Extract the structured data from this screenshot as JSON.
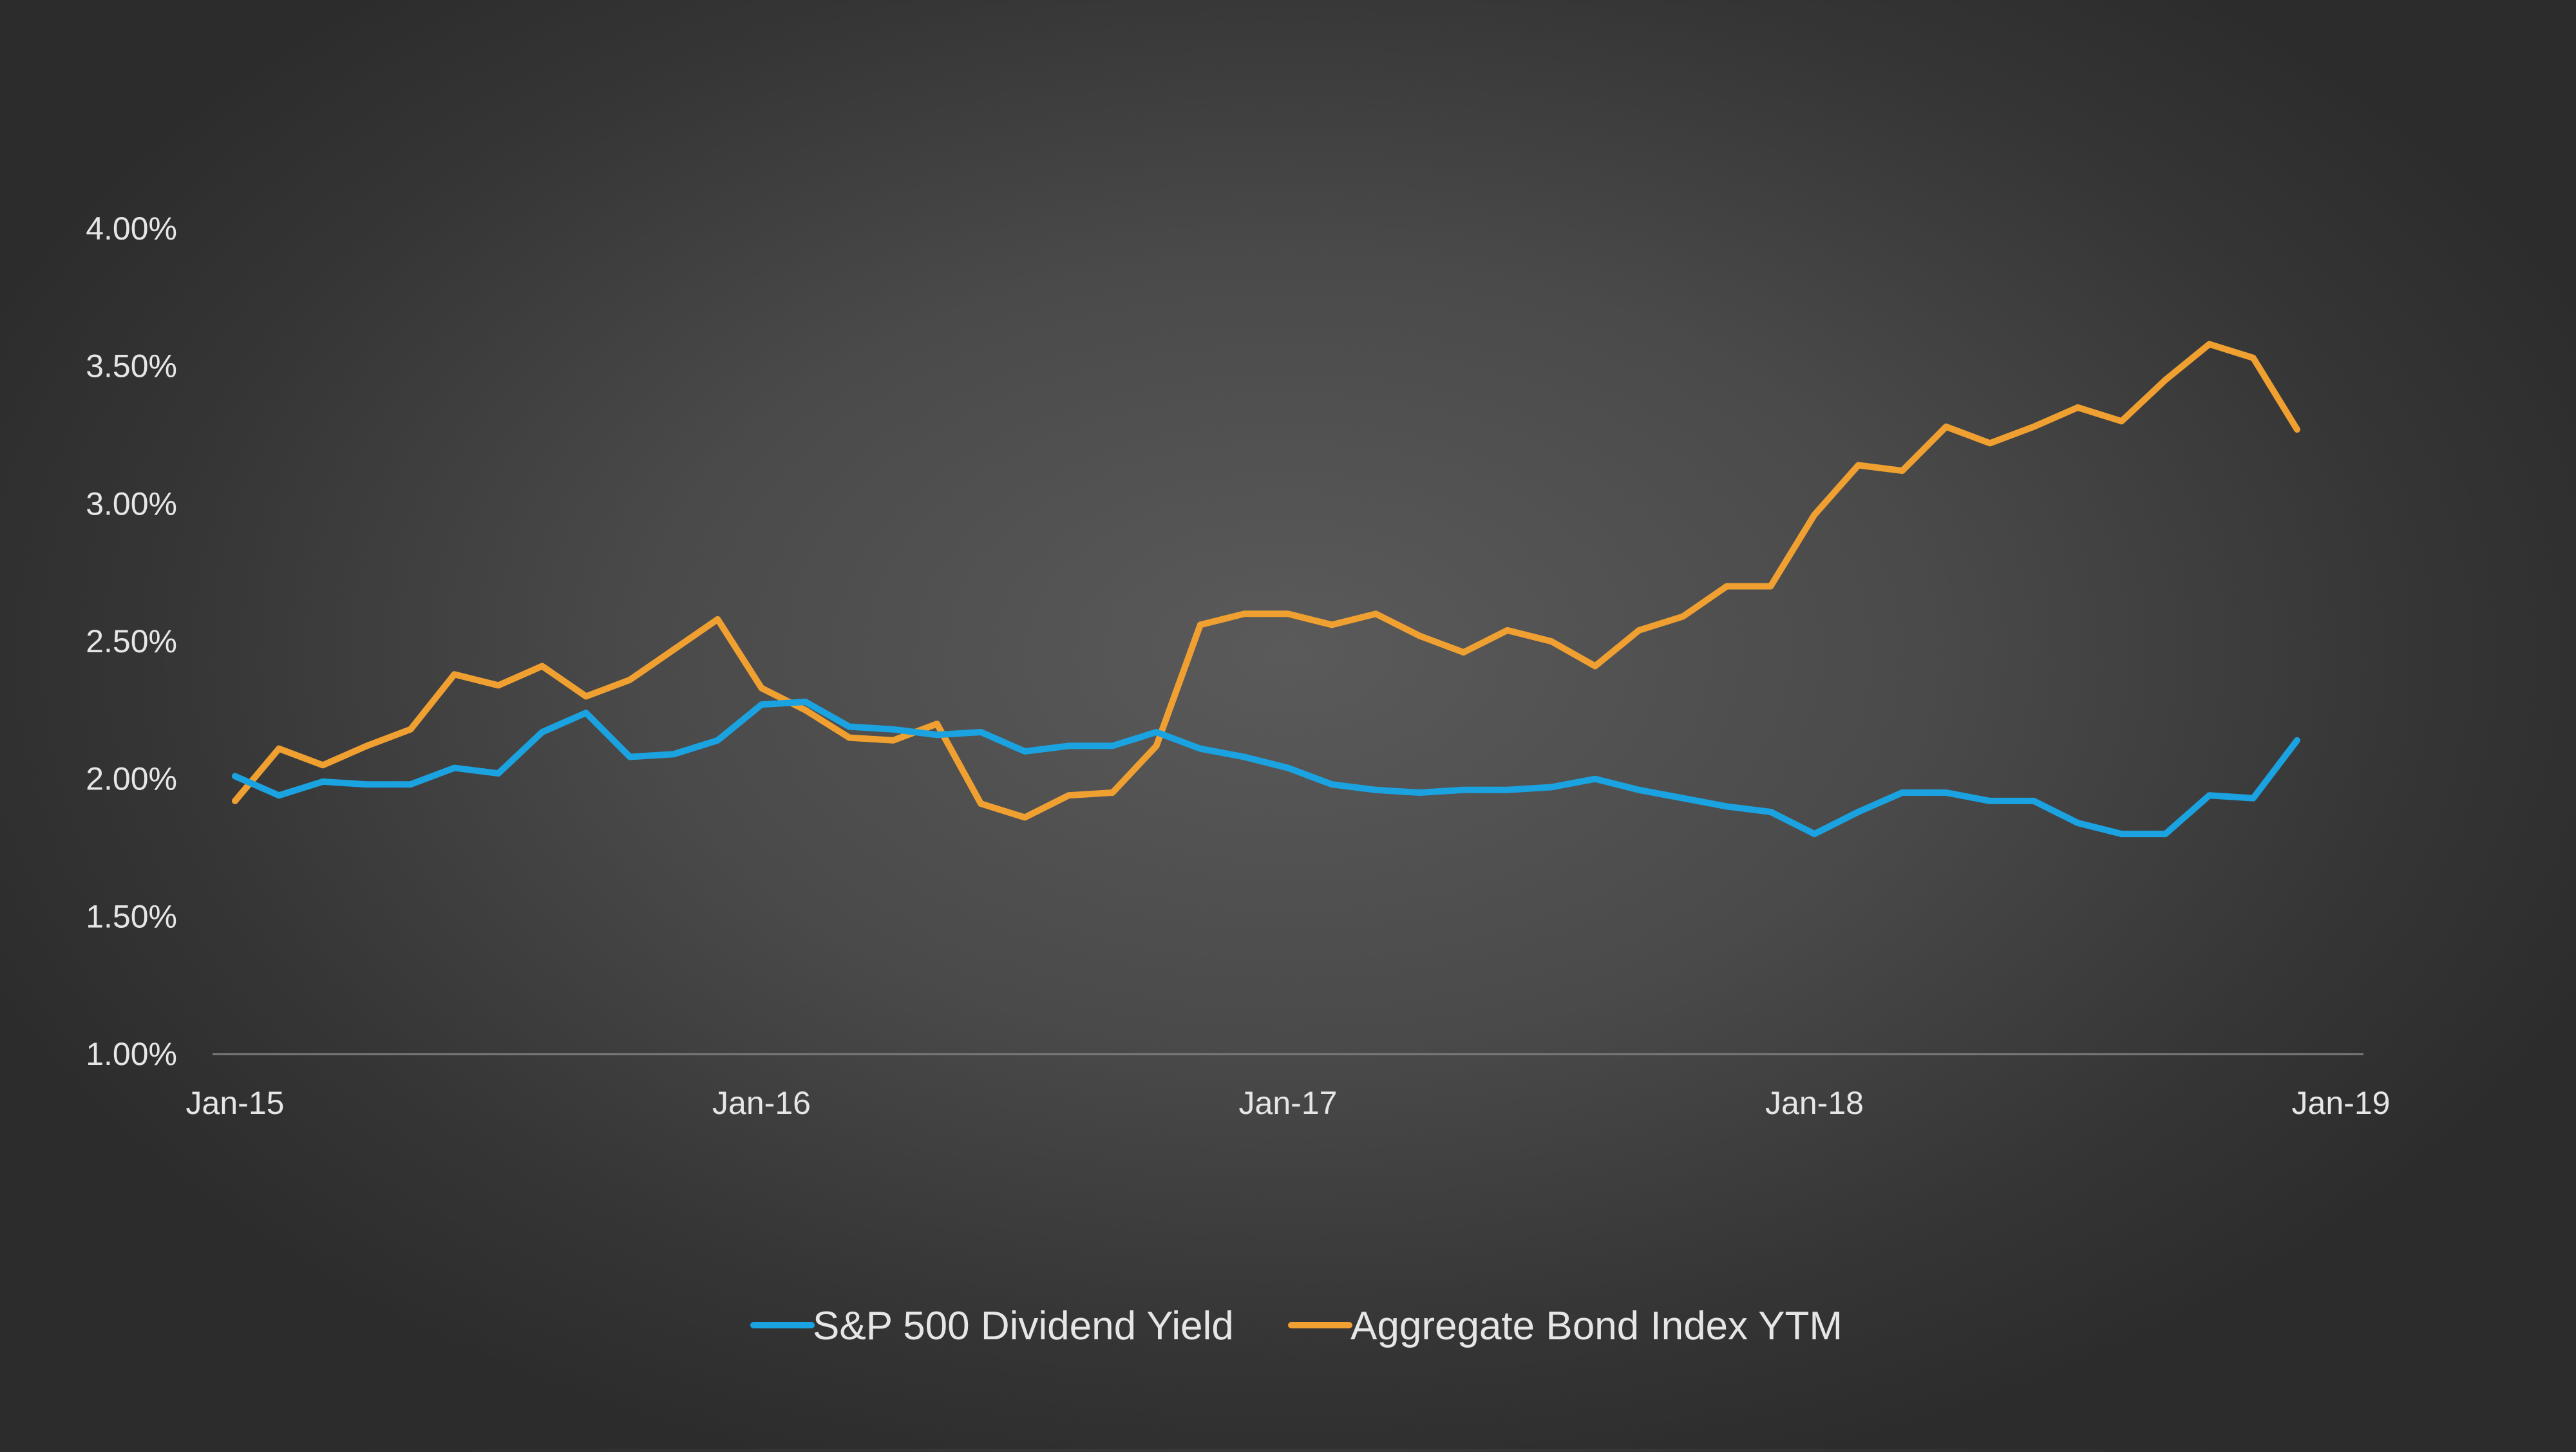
{
  "chart_data": {
    "type": "line",
    "title": "",
    "xlabel": "",
    "ylabel": "",
    "x_ticks": [
      "Jan-15",
      "Jan-16",
      "Jan-17",
      "Jan-18",
      "Jan-19"
    ],
    "y_ticks": [
      "1.00%",
      "1.50%",
      "2.00%",
      "2.50%",
      "3.00%",
      "3.50%",
      "4.00%"
    ],
    "ylim": [
      1.0,
      4.0
    ],
    "grid": false,
    "legend_position": "bottom",
    "x": [
      "Jan-15",
      "Feb-15",
      "Mar-15",
      "Apr-15",
      "May-15",
      "Jun-15",
      "Jul-15",
      "Aug-15",
      "Sep-15",
      "Oct-15",
      "Nov-15",
      "Dec-15",
      "Jan-16",
      "Feb-16",
      "Mar-16",
      "Apr-16",
      "May-16",
      "Jun-16",
      "Jul-16",
      "Aug-16",
      "Sep-16",
      "Oct-16",
      "Nov-16",
      "Dec-16",
      "Jan-17",
      "Feb-17",
      "Mar-17",
      "Apr-17",
      "May-17",
      "Jun-17",
      "Jul-17",
      "Aug-17",
      "Sep-17",
      "Oct-17",
      "Nov-17",
      "Dec-17",
      "Jan-18",
      "Feb-18",
      "Mar-18",
      "Apr-18",
      "May-18",
      "Jun-18",
      "Jul-18",
      "Aug-18",
      "Sep-18",
      "Oct-18",
      "Nov-18",
      "Dec-18"
    ],
    "series": [
      {
        "name": "S&P 500 Dividend Yield",
        "color": "#1aa3e0",
        "values": [
          2.01,
          1.94,
          1.99,
          1.98,
          1.98,
          2.04,
          2.02,
          2.17,
          2.24,
          2.08,
          2.09,
          2.14,
          2.27,
          2.28,
          2.19,
          2.18,
          2.16,
          2.17,
          2.1,
          2.12,
          2.12,
          2.17,
          2.11,
          2.08,
          2.04,
          1.98,
          1.96,
          1.95,
          1.96,
          1.96,
          1.97,
          2.0,
          1.96,
          1.93,
          1.9,
          1.88,
          1.8,
          1.88,
          1.95,
          1.95,
          1.92,
          1.92,
          1.84,
          1.8,
          1.8,
          1.94,
          1.93,
          2.14
        ]
      },
      {
        "name": "Aggregate Bond Index YTM",
        "color": "#f0a030",
        "values": [
          1.92,
          2.11,
          2.05,
          2.12,
          2.18,
          2.38,
          2.34,
          2.41,
          2.3,
          2.36,
          2.47,
          2.58,
          2.33,
          2.25,
          2.15,
          2.14,
          2.2,
          1.91,
          1.86,
          1.94,
          1.95,
          2.12,
          2.56,
          2.6,
          2.6,
          2.56,
          2.6,
          2.52,
          2.46,
          2.54,
          2.5,
          2.41,
          2.54,
          2.59,
          2.7,
          2.7,
          2.96,
          3.14,
          3.12,
          3.28,
          3.22,
          3.28,
          3.35,
          3.3,
          3.45,
          3.58,
          3.53,
          3.27
        ]
      }
    ]
  }
}
